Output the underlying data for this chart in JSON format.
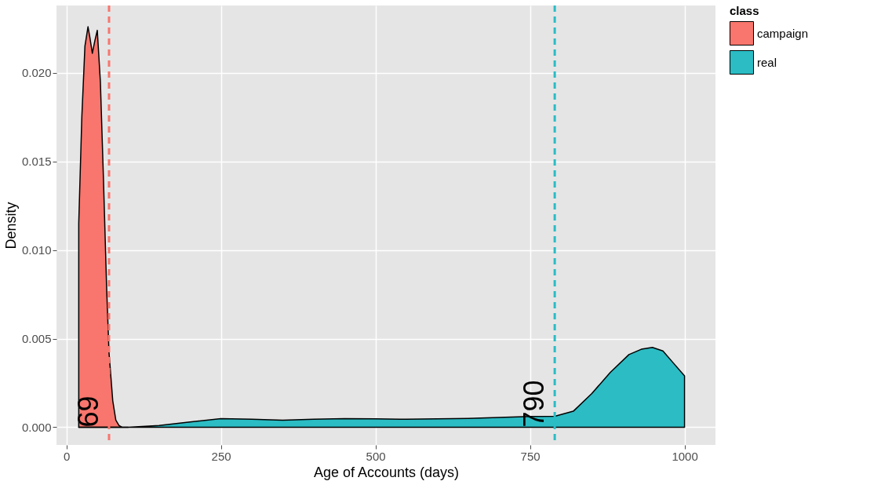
{
  "chart_data": {
    "type": "area",
    "xlabel": "Age of Accounts (days)",
    "ylabel": "Density",
    "legend_title": "class",
    "series": [
      {
        "name": "campaign",
        "color": "#f8766d",
        "x": [
          20,
          25,
          30,
          35,
          38,
          42,
          46,
          50,
          55,
          60,
          65,
          69,
          75,
          80,
          85,
          90,
          100
        ],
        "values": [
          0.0115,
          0.0175,
          0.0215,
          0.0226,
          0.022,
          0.0211,
          0.0218,
          0.0224,
          0.0195,
          0.014,
          0.008,
          0.0042,
          0.0015,
          0.0004,
          0.0001,
          0,
          0
        ]
      },
      {
        "name": "real",
        "color": "#2bbcc4",
        "x": [
          20,
          50,
          100,
          150,
          200,
          250,
          300,
          350,
          400,
          450,
          500,
          550,
          600,
          650,
          700,
          750,
          790,
          820,
          850,
          880,
          910,
          930,
          948,
          965,
          980,
          1000
        ],
        "values": [
          0,
          0,
          0,
          0.0001,
          0.0003,
          0.00048,
          0.00045,
          0.0004,
          0.00045,
          0.00048,
          0.00047,
          0.00045,
          0.00047,
          0.0005,
          0.00055,
          0.0006,
          0.00062,
          0.0009,
          0.0019,
          0.0031,
          0.0041,
          0.0044,
          0.0045,
          0.0043,
          0.0037,
          0.0029
        ]
      }
    ],
    "ref_lines": [
      {
        "axis": "x",
        "value": 69,
        "label": "69",
        "color": "#f8766d",
        "line_style": "dashed"
      },
      {
        "axis": "x",
        "value": 790,
        "label": "790",
        "color": "#2bbcc4",
        "line_style": "dashed"
      }
    ],
    "xlim": [
      -16,
      1050
    ],
    "xticks": [
      0,
      250,
      500,
      750,
      1000
    ],
    "ylim": [
      -0.001,
      0.0238
    ],
    "yticks": [
      {
        "value": 0,
        "label": "0.000"
      },
      {
        "value": 0.005,
        "label": "0.005"
      },
      {
        "value": 0.01,
        "label": "0.010"
      },
      {
        "value": 0.015,
        "label": "0.015"
      },
      {
        "value": 0.02,
        "label": "0.020"
      }
    ],
    "grid": true,
    "legend": "right"
  }
}
